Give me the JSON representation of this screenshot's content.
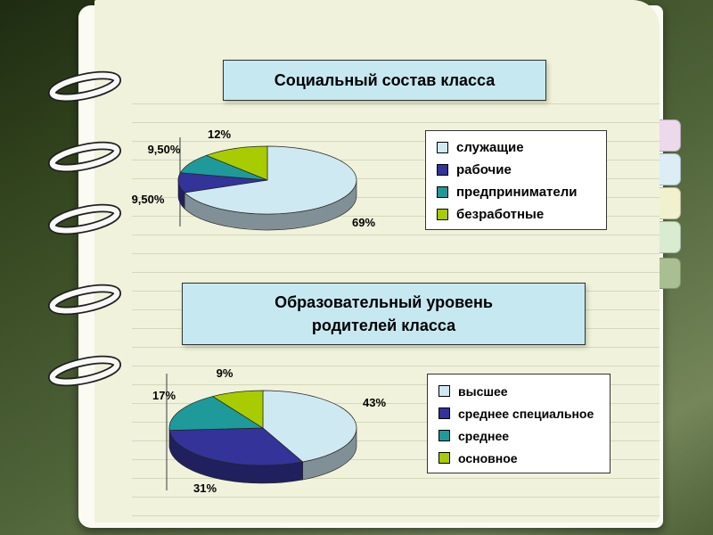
{
  "slide": {
    "chart1_title": "Социальный состав класса",
    "chart2_title_line1": "Образовательный уровень",
    "chart2_title_line2": "родителей класса"
  },
  "chart_data": [
    {
      "type": "pie",
      "style": "3d",
      "title": "Социальный состав класса",
      "labels": [
        "служащие",
        "рабочие",
        "предприниматели",
        "безработные"
      ],
      "values": [
        69,
        9.5,
        9.5,
        12
      ],
      "value_labels": [
        "69%",
        "9,50%",
        "9,50%",
        "12%"
      ],
      "colors": [
        "#cfe9f2",
        "#333399",
        "#1f9a9a",
        "#a8cc00"
      ],
      "legend_position": "right",
      "start_angle": "top",
      "direction": "clockwise"
    },
    {
      "type": "pie",
      "style": "3d",
      "title": "Образовательный уровень родителей класса",
      "labels": [
        "высшее",
        "среднее специальное",
        "среднее",
        "основное"
      ],
      "values": [
        43,
        31,
        17,
        9
      ],
      "value_labels": [
        "43%",
        "31%",
        "17%",
        "9%"
      ],
      "colors": [
        "#cfe9f2",
        "#333399",
        "#1f9a9a",
        "#a8cc00"
      ],
      "legend_position": "right",
      "start_angle": "top",
      "direction": "clockwise"
    }
  ]
}
